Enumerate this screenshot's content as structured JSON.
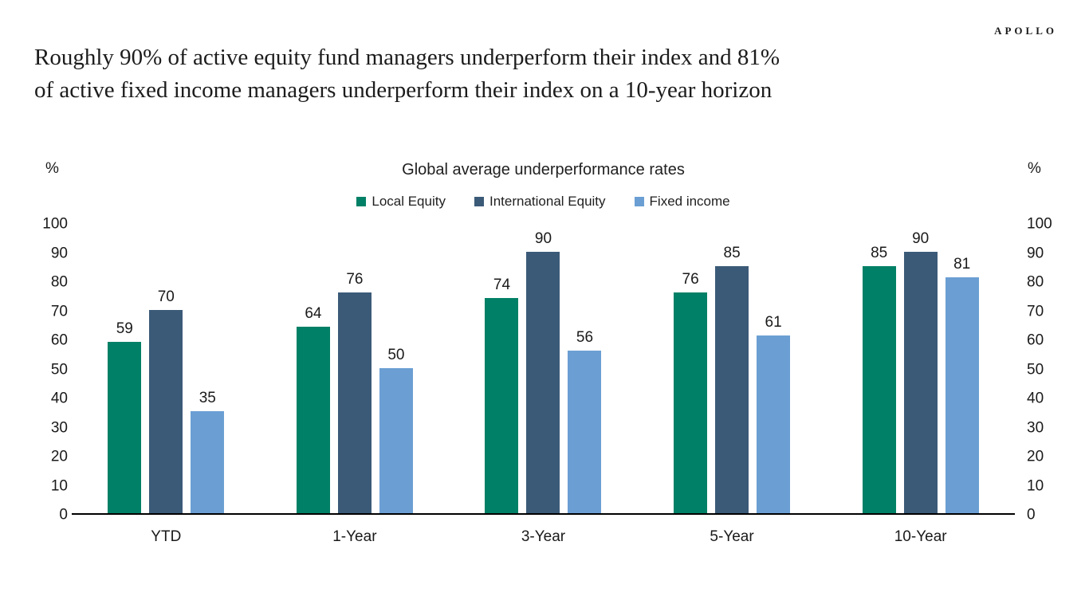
{
  "page": {
    "logo": "APOLLO",
    "headline_line1": "Roughly 90% of active equity fund managers underperform their index and 81%",
    "headline_line2": "of active fixed income managers underperform their index on a 10-year horizon"
  },
  "chart_data": {
    "type": "bar",
    "title": "Global average underperformance rates",
    "unit_label": "%",
    "categories": [
      "YTD",
      "1-Year",
      "3-Year",
      "5-Year",
      "10-Year"
    ],
    "series": [
      {
        "name": "Local Equity",
        "color": "#008066",
        "values": [
          59,
          64,
          74,
          76,
          85
        ]
      },
      {
        "name": "International Equity",
        "color": "#3B5A78",
        "values": [
          70,
          76,
          90,
          85,
          90
        ]
      },
      {
        "name": "Fixed income",
        "color": "#6B9FD3",
        "values": [
          35,
          50,
          56,
          61,
          81
        ]
      }
    ],
    "ylim": [
      0,
      100
    ],
    "ytick_step": 10,
    "axis_sides": [
      "left",
      "right"
    ],
    "grid": false,
    "legend_position": "top",
    "data_labels": true
  }
}
